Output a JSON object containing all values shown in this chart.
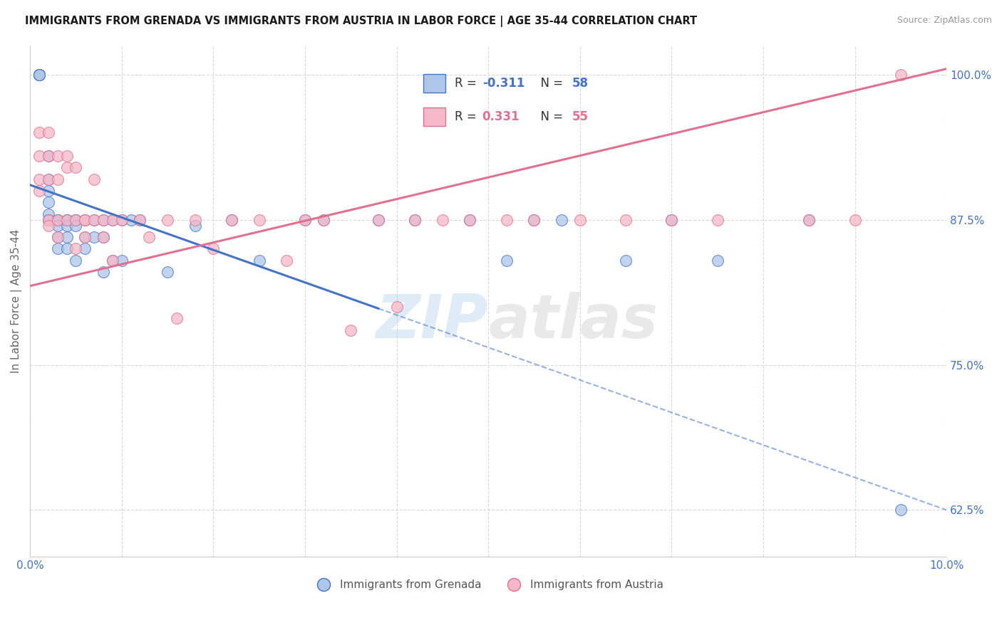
{
  "title": "IMMIGRANTS FROM GRENADA VS IMMIGRANTS FROM AUSTRIA IN LABOR FORCE | AGE 35-44 CORRELATION CHART",
  "source": "Source: ZipAtlas.com",
  "ylabel": "In Labor Force | Age 35-44",
  "x_min": 0.0,
  "x_max": 0.1,
  "y_min": 0.585,
  "y_max": 1.025,
  "yticks": [
    0.625,
    0.75,
    0.875,
    1.0
  ],
  "ytick_labels": [
    "62.5%",
    "75.0%",
    "87.5%",
    "100.0%"
  ],
  "xtick_labels": [
    "0.0%",
    "",
    "",
    "",
    "",
    "",
    "",
    "",
    "",
    "",
    "10.0%"
  ],
  "xticks": [
    0.0,
    0.01,
    0.02,
    0.03,
    0.04,
    0.05,
    0.06,
    0.07,
    0.08,
    0.09,
    0.1
  ],
  "legend_r_grenada": "-0.311",
  "legend_n_grenada": "58",
  "legend_r_austria": "0.331",
  "legend_n_austria": "55",
  "color_grenada": "#aec6e8",
  "color_austria": "#f5b8c8",
  "line_color_grenada": "#4472c4",
  "line_color_austria": "#e07090",
  "watermark_zip": "ZIP",
  "watermark_atlas": "atlas",
  "grenada_x": [
    0.001,
    0.001,
    0.001,
    0.001,
    0.001,
    0.002,
    0.002,
    0.002,
    0.002,
    0.002,
    0.002,
    0.002,
    0.003,
    0.003,
    0.003,
    0.003,
    0.003,
    0.003,
    0.004,
    0.004,
    0.004,
    0.004,
    0.004,
    0.005,
    0.005,
    0.005,
    0.005,
    0.006,
    0.006,
    0.006,
    0.007,
    0.007,
    0.008,
    0.008,
    0.008,
    0.009,
    0.009,
    0.01,
    0.01,
    0.011,
    0.012,
    0.015,
    0.018,
    0.022,
    0.025,
    0.03,
    0.032,
    0.038,
    0.042,
    0.048,
    0.052,
    0.055,
    0.058,
    0.065,
    0.07,
    0.075,
    0.085,
    0.095
  ],
  "grenada_y": [
    1.0,
    1.0,
    1.0,
    1.0,
    1.0,
    0.93,
    0.91,
    0.9,
    0.89,
    0.88,
    0.875,
    0.875,
    0.875,
    0.875,
    0.875,
    0.87,
    0.86,
    0.85,
    0.875,
    0.875,
    0.87,
    0.86,
    0.85,
    0.875,
    0.875,
    0.87,
    0.84,
    0.875,
    0.86,
    0.85,
    0.875,
    0.86,
    0.875,
    0.86,
    0.83,
    0.875,
    0.84,
    0.875,
    0.84,
    0.875,
    0.875,
    0.83,
    0.87,
    0.875,
    0.84,
    0.875,
    0.875,
    0.875,
    0.875,
    0.875,
    0.84,
    0.875,
    0.875,
    0.84,
    0.875,
    0.84,
    0.875,
    0.625
  ],
  "austria_x": [
    0.001,
    0.001,
    0.001,
    0.001,
    0.002,
    0.002,
    0.002,
    0.002,
    0.002,
    0.003,
    0.003,
    0.003,
    0.003,
    0.004,
    0.004,
    0.004,
    0.005,
    0.005,
    0.005,
    0.006,
    0.006,
    0.006,
    0.007,
    0.007,
    0.008,
    0.008,
    0.009,
    0.009,
    0.01,
    0.012,
    0.013,
    0.015,
    0.016,
    0.018,
    0.02,
    0.022,
    0.025,
    0.028,
    0.03,
    0.032,
    0.035,
    0.038,
    0.04,
    0.042,
    0.045,
    0.048,
    0.052,
    0.055,
    0.06,
    0.065,
    0.07,
    0.075,
    0.085,
    0.09,
    0.095
  ],
  "austria_y": [
    0.95,
    0.93,
    0.91,
    0.9,
    0.95,
    0.93,
    0.91,
    0.875,
    0.87,
    0.93,
    0.91,
    0.875,
    0.86,
    0.93,
    0.92,
    0.875,
    0.92,
    0.875,
    0.85,
    0.875,
    0.875,
    0.86,
    0.91,
    0.875,
    0.875,
    0.86,
    0.875,
    0.84,
    0.875,
    0.875,
    0.86,
    0.875,
    0.79,
    0.875,
    0.85,
    0.875,
    0.875,
    0.84,
    0.875,
    0.875,
    0.78,
    0.875,
    0.8,
    0.875,
    0.875,
    0.875,
    0.875,
    0.875,
    0.875,
    0.875,
    0.875,
    0.875,
    0.875,
    0.875,
    1.0
  ],
  "grid_color": "#d8d8d8",
  "background_color": "#ffffff",
  "axis_label_color": "#4472c4",
  "line_grenada_x0": 0.0,
  "line_grenada_x1": 0.1,
  "line_grenada_y0": 0.905,
  "line_grenada_y1": 0.625,
  "line_grenada_solid_end": 0.038,
  "line_austria_x0": 0.0,
  "line_austria_x1": 0.1,
  "line_austria_y0": 0.818,
  "line_austria_y1": 1.005
}
